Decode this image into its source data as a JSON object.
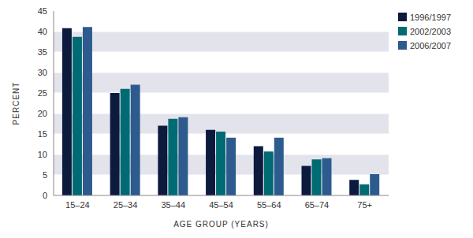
{
  "chart_data": {
    "type": "bar",
    "x_label": "AGE GROUP (YEARS)",
    "y_label": "PERCENT",
    "categories": [
      "15–24",
      "25–34",
      "35–44",
      "45–54",
      "55–64",
      "65–74",
      "75+"
    ],
    "series": [
      {
        "name": "1996/1997",
        "color": "#0c1a3e",
        "values": [
          40.8,
          25,
          17,
          16,
          12,
          7.2,
          3.8
        ]
      },
      {
        "name": "2002/2003",
        "color": "#006b72",
        "values": [
          38.7,
          26,
          18.7,
          15.6,
          10.7,
          8.8,
          2.7
        ]
      },
      {
        "name": "2006/2007",
        "color": "#2e5b8e",
        "values": [
          41.1,
          27,
          19.1,
          14.1,
          14.1,
          9.1,
          5.2
        ]
      }
    ],
    "ylim": [
      0,
      45
    ],
    "yticks": [
      0,
      5,
      10,
      15,
      20,
      25,
      30,
      35,
      40,
      45
    ],
    "grid": true,
    "legend": "top-right"
  }
}
